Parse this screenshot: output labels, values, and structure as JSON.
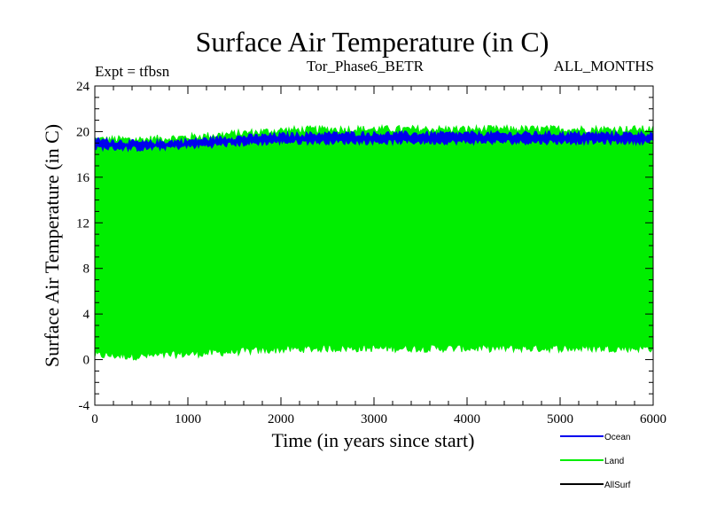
{
  "chart_data": {
    "type": "area",
    "title": "Surface Air Temperature (in C)",
    "subtitle_left": "Expt = tfbsn",
    "subtitle_center": "Tor_Phase6_BETR",
    "subtitle_right": "ALL_MONTHS",
    "xlabel": "Time (in years since start)",
    "ylabel": "Surface Air Temperature (in C)",
    "xlim": [
      0,
      6000
    ],
    "ylim": [
      -4,
      24
    ],
    "xticks": [
      0,
      1000,
      2000,
      3000,
      4000,
      5000,
      6000
    ],
    "yticks": [
      -4,
      0,
      4,
      8,
      12,
      16,
      20,
      24
    ],
    "xtick_labels": [
      "0",
      "1000",
      "2000",
      "3000",
      "4000",
      "5000",
      "6000"
    ],
    "ytick_labels": [
      "-4",
      "0",
      "4",
      "8",
      "12",
      "16",
      "20",
      "24"
    ],
    "series": [
      {
        "name": "Land",
        "color": "#00ee00",
        "x": [
          0,
          500,
          1000,
          1500,
          2000,
          2500,
          3000,
          3500,
          4000,
          4500,
          5000,
          5500,
          6000
        ],
        "upper": [
          19.3,
          19.3,
          19.5,
          19.8,
          20.1,
          20.2,
          20.2,
          20.2,
          20.2,
          20.2,
          20.2,
          20.2,
          20.2
        ],
        "lower": [
          0.4,
          0.3,
          0.5,
          0.7,
          0.9,
          1.0,
          1.0,
          1.0,
          1.0,
          1.0,
          1.0,
          1.0,
          1.0
        ]
      },
      {
        "name": "Ocean",
        "color": "#0000ee",
        "x": [
          0,
          500,
          1000,
          1500,
          2000,
          2500,
          3000,
          3500,
          4000,
          4500,
          5000,
          5500,
          6000
        ],
        "upper": [
          19.3,
          19.0,
          19.2,
          19.5,
          19.7,
          19.8,
          19.8,
          19.8,
          19.8,
          19.8,
          19.8,
          19.8,
          19.8
        ],
        "lower": [
          18.6,
          18.5,
          18.7,
          18.9,
          19.1,
          19.1,
          19.1,
          19.1,
          19.1,
          19.1,
          19.1,
          19.1,
          19.1
        ]
      },
      {
        "name": "AllSurf",
        "color": "#000000",
        "x": [],
        "upper": [],
        "lower": []
      }
    ],
    "legend_position": "bottom-right"
  }
}
